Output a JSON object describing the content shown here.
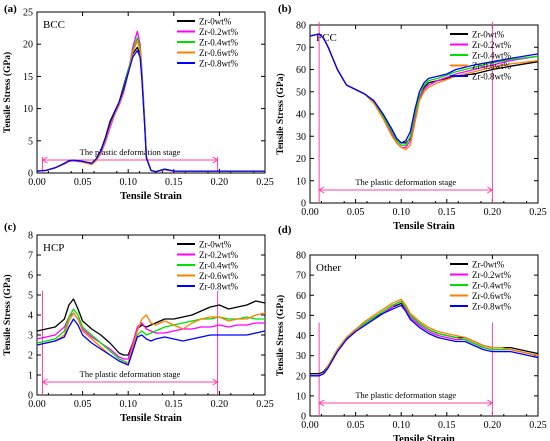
{
  "figure": {
    "colors": {
      "Zr-0wt%": "#000000",
      "Zr-0.2wt%": "#ff00ff",
      "Zr-0.4wt%": "#00e000",
      "Zr-0.6wt%": "#ff7f00",
      "Zr-0.8wt%": "#0000ff",
      "stage_marker": "#ff3fa6"
    }
  },
  "chart_data": [
    {
      "type": "line",
      "panel_label": "(a)",
      "inner_label": "BCC",
      "xlabel": "Tensile Strain",
      "ylabel": "Tensile Stress (GPa)",
      "xlim": [
        0,
        0.25
      ],
      "ylim": [
        0,
        25
      ],
      "xticks": [
        "0.00",
        "0.05",
        "0.10",
        "0.15",
        "0.20",
        "0.25"
      ],
      "yticks": [
        "0",
        "5",
        "10",
        "15",
        "20",
        "25"
      ],
      "legend_position": "top-right",
      "stage_text": "The plastic deformation stage",
      "stage_range": [
        0.006,
        0.198
      ],
      "x": [
        0,
        0.01,
        0.02,
        0.03,
        0.035,
        0.04,
        0.05,
        0.06,
        0.065,
        0.07,
        0.075,
        0.08,
        0.085,
        0.09,
        0.095,
        0.1,
        0.105,
        0.11,
        0.113,
        0.115,
        0.118,
        0.12,
        0.125,
        0.13,
        0.14,
        0.15,
        0.17,
        0.2,
        0.25
      ],
      "series": [
        {
          "name": "Zr-0wt%",
          "values": [
            0.3,
            0.4,
            0.8,
            1.5,
            1.9,
            2.0,
            1.8,
            1.5,
            2.2,
            3.5,
            5.5,
            8.0,
            9.5,
            11.0,
            13.5,
            16.0,
            18.5,
            19.5,
            18.5,
            15.0,
            8.0,
            2.5,
            0.4,
            0.2,
            0.6,
            0.3,
            0.3,
            0.3,
            0.3
          ]
        },
        {
          "name": "Zr-0.2wt%",
          "values": [
            0.3,
            0.4,
            0.8,
            1.4,
            1.8,
            1.9,
            1.7,
            1.4,
            2.0,
            3.0,
            4.8,
            7.0,
            9.0,
            10.5,
            12.5,
            15.5,
            19.5,
            22.0,
            20.0,
            16.0,
            8.5,
            2.5,
            0.4,
            0.2,
            0.5,
            0.3,
            0.3,
            0.3,
            0.3
          ]
        },
        {
          "name": "Zr-0.4wt%",
          "values": [
            0.3,
            0.4,
            0.8,
            1.5,
            1.8,
            2.0,
            1.7,
            1.4,
            2.1,
            3.3,
            5.2,
            7.6,
            9.3,
            10.8,
            13.2,
            15.8,
            19.0,
            21.0,
            19.5,
            15.5,
            8.2,
            2.4,
            0.4,
            0.2,
            0.6,
            0.3,
            0.3,
            0.3,
            0.3
          ]
        },
        {
          "name": "Zr-0.6wt%",
          "values": [
            0.3,
            0.4,
            0.8,
            1.4,
            1.8,
            2.0,
            1.7,
            1.3,
            1.9,
            3.1,
            5.0,
            7.3,
            9.1,
            10.6,
            12.8,
            15.5,
            18.8,
            20.5,
            19.0,
            15.0,
            8.0,
            2.4,
            0.4,
            0.2,
            0.5,
            0.3,
            0.3,
            0.3,
            0.3
          ]
        },
        {
          "name": "Zr-0.8wt%",
          "values": [
            0.3,
            0.4,
            0.8,
            1.5,
            1.9,
            2.0,
            1.8,
            1.5,
            2.2,
            3.4,
            5.4,
            7.8,
            9.4,
            11.0,
            13.0,
            15.5,
            18.0,
            19.0,
            18.0,
            14.5,
            7.5,
            2.3,
            0.4,
            0.2,
            0.6,
            0.3,
            0.3,
            0.3,
            0.3
          ]
        }
      ]
    },
    {
      "type": "line",
      "panel_label": "(b)",
      "inner_label": "FCC",
      "xlabel": "Tensile Strain",
      "ylabel": "Tensile Stress (GPa)",
      "xlim": [
        0,
        0.25
      ],
      "ylim": [
        0,
        80
      ],
      "xticks": [
        "0.00",
        "0.05",
        "0.10",
        "0.15",
        "0.20",
        "0.25"
      ],
      "yticks": [
        "0",
        "10",
        "20",
        "30",
        "40",
        "50",
        "60",
        "70",
        "80"
      ],
      "legend_position": "top-right",
      "stage_text": "The plastic deformation stage",
      "stage_range": [
        0.01,
        0.2
      ],
      "x": [
        0,
        0.005,
        0.01,
        0.015,
        0.02,
        0.03,
        0.04,
        0.05,
        0.06,
        0.07,
        0.08,
        0.09,
        0.095,
        0.1,
        0.105,
        0.11,
        0.115,
        0.12,
        0.125,
        0.13,
        0.14,
        0.15,
        0.16,
        0.18,
        0.2,
        0.22,
        0.25
      ],
      "series": [
        {
          "name": "Zr-0wt%",
          "values": [
            75,
            75.5,
            76,
            74,
            70,
            60,
            53,
            51,
            49,
            46,
            40,
            33,
            29,
            27,
            27,
            29,
            40,
            48,
            52,
            54,
            55,
            56,
            57,
            58,
            60,
            61.5,
            63.5
          ]
        },
        {
          "name": "Zr-0.2wt%",
          "values": [
            75,
            75.5,
            76,
            74,
            70,
            60,
            53,
            51,
            49,
            45,
            39,
            31,
            27,
            25,
            25,
            28,
            38,
            47,
            51,
            53,
            55,
            56.5,
            58,
            60,
            62,
            64,
            66
          ]
        },
        {
          "name": "Zr-0.4wt%",
          "values": [
            75,
            75.5,
            76,
            74,
            70,
            60,
            53,
            51,
            49,
            45,
            39,
            32,
            28,
            26,
            26,
            30,
            40,
            48,
            53,
            55,
            56,
            57.5,
            59,
            61,
            63,
            64.5,
            66
          ]
        },
        {
          "name": "Zr-0.6wt%",
          "values": [
            75,
            75.5,
            76,
            74,
            70,
            60,
            53,
            51,
            49,
            45,
            38,
            30,
            27,
            25,
            24,
            26,
            36,
            46,
            50,
            52,
            54,
            55.5,
            57,
            59,
            61,
            62.5,
            64
          ]
        },
        {
          "name": "Zr-0.8wt%",
          "values": [
            75,
            75.5,
            76,
            74,
            70,
            60,
            53,
            51,
            49,
            46,
            40,
            33,
            29,
            27,
            28,
            32,
            42,
            50,
            54,
            56,
            57,
            58,
            60,
            62,
            63.5,
            65,
            67
          ]
        }
      ]
    },
    {
      "type": "line",
      "panel_label": "(c)",
      "inner_label": "HCP",
      "xlabel": "Tensile Strain",
      "ylabel": "Tensile Stress (GPa)",
      "xlim": [
        0,
        0.25
      ],
      "ylim": [
        0,
        8
      ],
      "xticks": [
        "0.00",
        "0.05",
        "0.10",
        "0.15",
        "0.20",
        "0.25"
      ],
      "yticks": [
        "0",
        "1",
        "2",
        "3",
        "4",
        "5",
        "6",
        "7",
        "8"
      ],
      "legend_position": "top-right",
      "stage_text": "The plastic deformation stage",
      "stage_range": [
        0.006,
        0.198
      ],
      "x": [
        0,
        0.01,
        0.02,
        0.03,
        0.035,
        0.04,
        0.045,
        0.05,
        0.06,
        0.07,
        0.08,
        0.09,
        0.095,
        0.1,
        0.105,
        0.11,
        0.115,
        0.12,
        0.125,
        0.13,
        0.14,
        0.15,
        0.16,
        0.17,
        0.18,
        0.19,
        0.2,
        0.21,
        0.22,
        0.23,
        0.24,
        0.25
      ],
      "series": [
        {
          "name": "Zr-0wt%",
          "values": [
            3.2,
            3.3,
            3.4,
            3.8,
            4.5,
            4.8,
            4.3,
            3.7,
            3.3,
            3.0,
            2.6,
            2.1,
            2.0,
            2.0,
            2.6,
            3.3,
            3.5,
            3.4,
            3.5,
            3.6,
            3.8,
            3.8,
            3.9,
            4.0,
            4.2,
            4.4,
            4.5,
            4.3,
            4.4,
            4.5,
            4.7,
            4.6
          ]
        },
        {
          "name": "Zr-0.2wt%",
          "values": [
            2.8,
            2.9,
            3.0,
            3.4,
            3.9,
            4.1,
            3.8,
            3.3,
            2.9,
            2.6,
            2.3,
            1.9,
            1.8,
            1.8,
            2.6,
            3.4,
            3.6,
            3.3,
            3.2,
            3.1,
            3.1,
            3.2,
            3.3,
            3.3,
            3.4,
            3.4,
            3.5,
            3.4,
            3.5,
            3.5,
            3.6,
            3.6
          ]
        },
        {
          "name": "Zr-0.4wt%",
          "values": [
            2.6,
            2.7,
            2.8,
            3.2,
            3.9,
            4.3,
            4.0,
            3.4,
            3.0,
            2.6,
            2.2,
            1.8,
            1.7,
            1.6,
            2.3,
            3.0,
            3.2,
            3.0,
            3.1,
            3.2,
            3.4,
            3.5,
            3.6,
            3.7,
            3.8,
            3.8,
            3.9,
            3.8,
            3.8,
            3.9,
            3.8,
            3.8
          ]
        },
        {
          "name": "Zr-0.6wt%",
          "values": [
            2.5,
            2.6,
            2.7,
            3.0,
            3.7,
            4.1,
            3.8,
            3.2,
            2.8,
            2.4,
            2.0,
            1.7,
            1.6,
            1.6,
            2.4,
            3.2,
            3.8,
            4.0,
            3.6,
            3.5,
            3.7,
            3.5,
            3.3,
            3.6,
            3.8,
            3.9,
            3.9,
            3.7,
            3.8,
            3.8,
            4.0,
            4.1
          ]
        },
        {
          "name": "Zr-0.8wt%",
          "values": [
            2.5,
            2.6,
            2.7,
            2.9,
            3.4,
            3.8,
            3.5,
            3.0,
            2.6,
            2.3,
            2.0,
            1.7,
            1.6,
            1.5,
            2.2,
            2.9,
            3.0,
            2.8,
            2.7,
            2.8,
            2.9,
            2.8,
            2.7,
            2.8,
            2.9,
            3.0,
            3.0,
            3.0,
            3.0,
            3.0,
            3.1,
            3.2
          ]
        }
      ]
    },
    {
      "type": "line",
      "panel_label": "(d)",
      "inner_label": "Other",
      "xlabel": "Tensile Strain",
      "ylabel": "Tensile Stress (GPa)",
      "xlim": [
        0,
        0.25
      ],
      "ylim": [
        0,
        80
      ],
      "xticks": [
        "0.00",
        "0.05",
        "0.10",
        "0.15",
        "0.20",
        "0.25"
      ],
      "yticks": [
        "0",
        "10",
        "20",
        "30",
        "40",
        "50",
        "60",
        "70",
        "80"
      ],
      "legend_position": "top-right",
      "stage_text": "The plastic deformation stage",
      "stage_range": [
        0.01,
        0.2
      ],
      "x": [
        0,
        0.005,
        0.01,
        0.015,
        0.02,
        0.03,
        0.04,
        0.05,
        0.06,
        0.07,
        0.08,
        0.09,
        0.095,
        0.1,
        0.105,
        0.11,
        0.12,
        0.13,
        0.14,
        0.15,
        0.16,
        0.17,
        0.18,
        0.19,
        0.2,
        0.21,
        0.22,
        0.23,
        0.24,
        0.25
      ],
      "series": [
        {
          "name": "Zr-0wt%",
          "values": [
            21,
            21,
            21,
            22,
            25,
            33,
            39,
            43,
            46,
            49,
            51,
            54,
            55,
            56,
            53,
            50,
            46,
            43,
            41,
            40,
            39,
            39,
            37,
            35,
            34,
            34,
            34,
            33,
            32,
            31
          ]
        },
        {
          "name": "Zr-0.2wt%",
          "values": [
            20,
            20,
            20,
            21,
            24,
            32,
            38,
            42,
            45,
            48,
            51,
            54,
            56,
            57,
            53,
            49,
            45,
            42,
            40,
            39,
            38,
            38,
            36,
            34,
            33,
            33,
            33,
            32,
            31,
            30
          ]
        },
        {
          "name": "Zr-0.4wt%",
          "values": [
            20,
            20,
            20,
            21,
            25,
            33,
            39,
            43,
            46,
            49,
            52,
            55,
            56,
            57,
            54,
            50,
            46,
            43,
            41,
            40,
            39,
            38,
            36,
            34,
            33,
            33,
            33,
            32,
            31,
            30
          ]
        },
        {
          "name": "Zr-0.6wt%",
          "values": [
            20,
            20,
            20,
            21,
            25,
            33,
            39,
            43,
            47,
            50,
            53,
            56,
            57,
            58,
            55,
            51,
            47,
            44,
            42,
            41,
            40,
            39,
            37,
            35,
            34,
            34,
            33,
            32,
            31,
            30
          ]
        },
        {
          "name": "Zr-0.8wt%",
          "values": [
            20,
            20,
            20,
            21,
            24,
            32,
            38,
            42,
            45,
            48,
            51,
            53,
            54,
            55,
            52,
            48,
            44,
            41,
            39,
            38,
            37,
            37,
            35,
            33,
            32,
            32,
            32,
            31,
            30,
            29
          ]
        }
      ]
    }
  ]
}
